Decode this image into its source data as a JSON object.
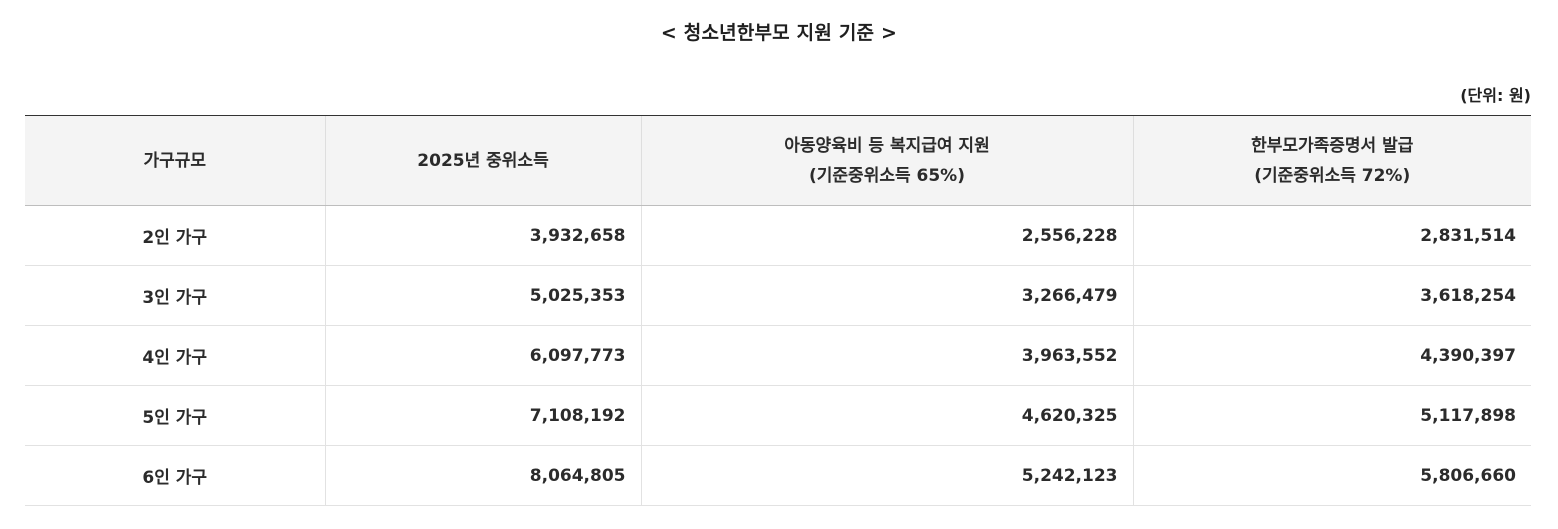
{
  "title": "< 청소년한부모 지원 기준 >",
  "unit_label": "(단위: 원)",
  "table": {
    "headers": [
      {
        "line1": "가구규모",
        "line2": ""
      },
      {
        "line1": "2025년 중위소득",
        "line2": ""
      },
      {
        "line1": "아동양육비 등 복지급여 지원",
        "line2": "(기준중위소득 65%)"
      },
      {
        "line1": "한부모가족증명서 발급",
        "line2": "(기준중위소득 72%)"
      }
    ],
    "rows": [
      [
        "2인 가구",
        "3,932,658",
        "2,556,228",
        "2,831,514"
      ],
      [
        "3인 가구",
        "5,025,353",
        "3,266,479",
        "3,618,254"
      ],
      [
        "4인 가구",
        "6,097,773",
        "3,963,552",
        "4,390,397"
      ],
      [
        "5인 가구",
        "7,108,192",
        "4,620,325",
        "5,117,898"
      ],
      [
        "6인 가구",
        "8,064,805",
        "5,242,123",
        "5,806,660"
      ]
    ]
  }
}
